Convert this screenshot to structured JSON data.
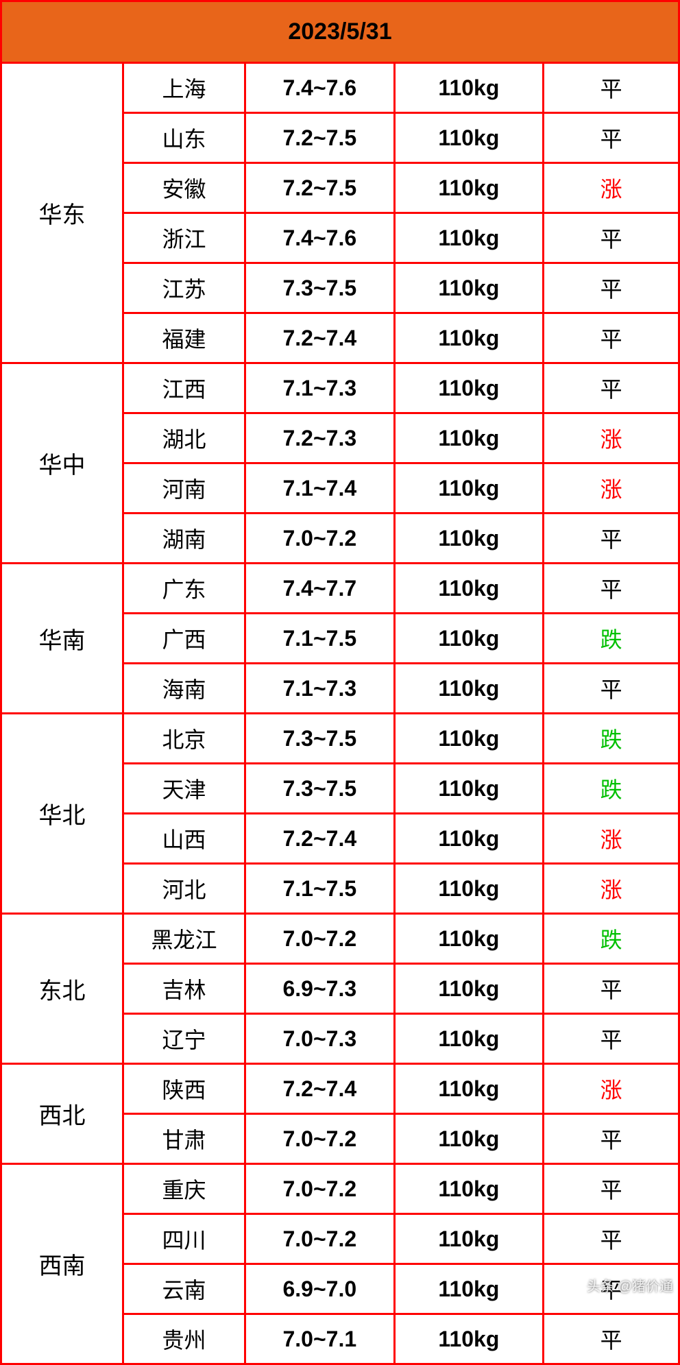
{
  "header": {
    "date": "2023/5/31",
    "background_color": "#e8651a",
    "text_color": "#000000",
    "fontsize": 34
  },
  "table": {
    "border_color": "#ff0000",
    "border_width": 3,
    "background_color": "#ffffff",
    "column_widths_pct": [
      18,
      18,
      22,
      22,
      20
    ],
    "columns": [
      "region",
      "province",
      "price_range",
      "weight",
      "trend"
    ],
    "trend_colors": {
      "涨": "#ff0000",
      "跌": "#00c000",
      "平": "#000000"
    },
    "regions": [
      {
        "name": "华东",
        "rows": [
          {
            "province": "上海",
            "price": "7.4~7.6",
            "weight": "110kg",
            "trend": "平"
          },
          {
            "province": "山东",
            "price": "7.2~7.5",
            "weight": "110kg",
            "trend": "平"
          },
          {
            "province": "安徽",
            "price": "7.2~7.5",
            "weight": "110kg",
            "trend": "涨"
          },
          {
            "province": "浙江",
            "price": "7.4~7.6",
            "weight": "110kg",
            "trend": "平"
          },
          {
            "province": "江苏",
            "price": "7.3~7.5",
            "weight": "110kg",
            "trend": "平"
          },
          {
            "province": "福建",
            "price": "7.2~7.4",
            "weight": "110kg",
            "trend": "平"
          }
        ]
      },
      {
        "name": "华中",
        "rows": [
          {
            "province": "江西",
            "price": "7.1~7.3",
            "weight": "110kg",
            "trend": "平"
          },
          {
            "province": "湖北",
            "price": "7.2~7.3",
            "weight": "110kg",
            "trend": "涨"
          },
          {
            "province": "河南",
            "price": "7.1~7.4",
            "weight": "110kg",
            "trend": "涨"
          },
          {
            "province": "湖南",
            "price": "7.0~7.2",
            "weight": "110kg",
            "trend": "平"
          }
        ]
      },
      {
        "name": "华南",
        "rows": [
          {
            "province": "广东",
            "price": "7.4~7.7",
            "weight": "110kg",
            "trend": "平"
          },
          {
            "province": "广西",
            "price": "7.1~7.5",
            "weight": "110kg",
            "trend": "跌"
          },
          {
            "province": "海南",
            "price": "7.1~7.3",
            "weight": "110kg",
            "trend": "平"
          }
        ]
      },
      {
        "name": "华北",
        "rows": [
          {
            "province": "北京",
            "price": "7.3~7.5",
            "weight": "110kg",
            "trend": "跌"
          },
          {
            "province": "天津",
            "price": "7.3~7.5",
            "weight": "110kg",
            "trend": "跌"
          },
          {
            "province": "山西",
            "price": "7.2~7.4",
            "weight": "110kg",
            "trend": "涨"
          },
          {
            "province": "河北",
            "price": "7.1~7.5",
            "weight": "110kg",
            "trend": "涨"
          }
        ]
      },
      {
        "name": "东北",
        "rows": [
          {
            "province": "黑龙江",
            "price": "7.0~7.2",
            "weight": "110kg",
            "trend": "跌"
          },
          {
            "province": "吉林",
            "price": "6.9~7.3",
            "weight": "110kg",
            "trend": "平"
          },
          {
            "province": "辽宁",
            "price": "7.0~7.3",
            "weight": "110kg",
            "trend": "平"
          }
        ]
      },
      {
        "name": "西北",
        "rows": [
          {
            "province": "陕西",
            "price": "7.2~7.4",
            "weight": "110kg",
            "trend": "涨"
          },
          {
            "province": "甘肃",
            "price": "7.0~7.2",
            "weight": "110kg",
            "trend": "平"
          }
        ]
      },
      {
        "name": "西南",
        "rows": [
          {
            "province": "重庆",
            "price": "7.0~7.2",
            "weight": "110kg",
            "trend": "平"
          },
          {
            "province": "四川",
            "price": "7.0~7.2",
            "weight": "110kg",
            "trend": "平"
          },
          {
            "province": "云南",
            "price": "6.9~7.0",
            "weight": "110kg",
            "trend": "平"
          },
          {
            "province": "贵州",
            "price": "7.0~7.1",
            "weight": "110kg",
            "trend": "平"
          }
        ]
      }
    ]
  },
  "watermark": "头条 @猪价通"
}
